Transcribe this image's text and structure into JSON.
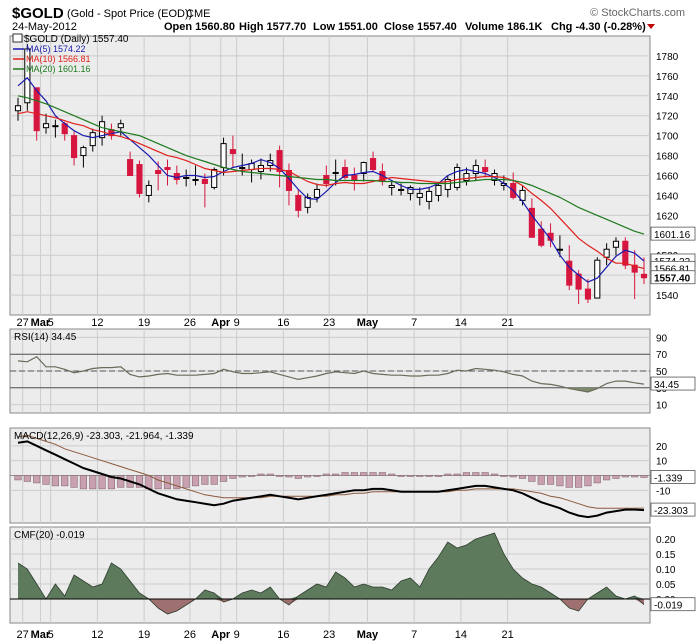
{
  "header": {
    "symbol": "$GOLD",
    "name": "(Gold - Spot Price (EOD))",
    "exchange": "CME",
    "watermark": "© StockCharts.com",
    "date": "24-May-2012",
    "open_label": "Open",
    "open": "1560.80",
    "high_label": "High",
    "high": "1577.70",
    "low_label": "Low",
    "low": "1551.00",
    "close_label": "Close",
    "close": "1557.40",
    "volume_label": "Volume",
    "volume": "186.1K",
    "chg_label": "Chg",
    "chg": "-4.30 (-0.28%)"
  },
  "legend": {
    "price": "$GOLD (Daily) 1557.40",
    "ma5": "MA(5) 1574.22",
    "ma10": "MA(10) 1566.81",
    "ma20": "MA(20) 1601.16"
  },
  "colors": {
    "up": "#ffffff",
    "down": "#d6163f",
    "ma5": "#1a1ab0",
    "ma10": "#e0201c",
    "ma20": "#1e7a1e",
    "grid": "#cccccc",
    "panel_bg": "#ececec",
    "rsi_line": "#6b6b5a",
    "macd_line": "#000000",
    "signal_line": "#8b5a3c",
    "hist": "#c9a0b0",
    "cmf_fill": "#5d7a5d",
    "cmf_neg_fill": "#9e7070"
  },
  "x_labels": [
    "27",
    "Mar",
    "5",
    "12",
    "19",
    "26",
    "Apr",
    "9",
    "16",
    "23",
    "May",
    "7",
    "14",
    "21"
  ],
  "chart_data": [
    {
      "type": "candlestick",
      "title": "$GOLD (Daily) 1557.40",
      "ylim": [
        1520,
        1800
      ],
      "y_ticks": [
        1540,
        1560,
        1580,
        1600,
        1620,
        1640,
        1660,
        1680,
        1700,
        1720,
        1740,
        1760,
        1780
      ],
      "current_labels": [
        "1601.16",
        "1574.22",
        "1566.81",
        "1557.40"
      ],
      "ohlc": [
        [
          1725,
          1738,
          1715,
          1730
        ],
        [
          1733,
          1792,
          1725,
          1787
        ],
        [
          1748,
          1748,
          1695,
          1705
        ],
        [
          1708,
          1722,
          1702,
          1712
        ],
        [
          1710,
          1716,
          1698,
          1710
        ],
        [
          1712,
          1714,
          1695,
          1702
        ],
        [
          1700,
          1704,
          1670,
          1678
        ],
        [
          1680,
          1690,
          1668,
          1688
        ],
        [
          1690,
          1707,
          1684,
          1703
        ],
        [
          1698,
          1720,
          1690,
          1714
        ],
        [
          1706,
          1712,
          1696,
          1700
        ],
        [
          1708,
          1716,
          1700,
          1712
        ],
        [
          1676,
          1684,
          1660,
          1660
        ],
        [
          1671,
          1675,
          1638,
          1642
        ],
        [
          1640,
          1655,
          1633,
          1650
        ],
        [
          1665,
          1674,
          1645,
          1662
        ],
        [
          1668,
          1676,
          1650,
          1666
        ],
        [
          1662,
          1670,
          1651,
          1656
        ],
        [
          1658,
          1666,
          1649,
          1658
        ],
        [
          1656,
          1670,
          1650,
          1656
        ],
        [
          1656,
          1662,
          1628,
          1652
        ],
        [
          1648,
          1668,
          1646,
          1666
        ],
        [
          1668,
          1698,
          1660,
          1692
        ],
        [
          1686,
          1700,
          1668,
          1682
        ],
        [
          1668,
          1682,
          1660,
          1668
        ],
        [
          1666,
          1676,
          1653,
          1672
        ],
        [
          1664,
          1677,
          1656,
          1670
        ],
        [
          1670,
          1682,
          1664,
          1675
        ],
        [
          1685,
          1690,
          1648,
          1664
        ],
        [
          1665,
          1672,
          1630,
          1645
        ],
        [
          1640,
          1646,
          1618,
          1625
        ],
        [
          1628,
          1642,
          1622,
          1638
        ],
        [
          1638,
          1652,
          1633,
          1646
        ],
        [
          1660,
          1670,
          1648,
          1652
        ],
        [
          1662,
          1676,
          1650,
          1663
        ],
        [
          1668,
          1676,
          1656,
          1658
        ],
        [
          1660,
          1668,
          1645,
          1655
        ],
        [
          1662,
          1674,
          1654,
          1673
        ],
        [
          1677,
          1684,
          1664,
          1666
        ],
        [
          1664,
          1672,
          1650,
          1654
        ],
        [
          1648,
          1655,
          1640,
          1650
        ],
        [
          1646,
          1652,
          1640,
          1646
        ],
        [
          1642,
          1650,
          1635,
          1648
        ],
        [
          1638,
          1648,
          1630,
          1642
        ],
        [
          1634,
          1648,
          1626,
          1644
        ],
        [
          1640,
          1652,
          1634,
          1650
        ],
        [
          1646,
          1660,
          1638,
          1656
        ],
        [
          1648,
          1672,
          1645,
          1668
        ],
        [
          1655,
          1668,
          1650,
          1662
        ],
        [
          1662,
          1676,
          1655,
          1670
        ],
        [
          1668,
          1676,
          1658,
          1664
        ],
        [
          1655,
          1666,
          1650,
          1662
        ],
        [
          1650,
          1660,
          1645,
          1652
        ],
        [
          1652,
          1663,
          1636,
          1638
        ],
        [
          1635,
          1650,
          1630,
          1645
        ],
        [
          1627,
          1637,
          1598,
          1598
        ],
        [
          1606,
          1614,
          1588,
          1590
        ],
        [
          1602,
          1612,
          1588,
          1595
        ],
        [
          1586,
          1600,
          1578,
          1586
        ],
        [
          1574,
          1590,
          1545,
          1550
        ],
        [
          1561,
          1565,
          1531,
          1546
        ],
        [
          1546,
          1556,
          1532,
          1536
        ],
        [
          1537,
          1578,
          1537,
          1575
        ],
        [
          1578,
          1592,
          1570,
          1586
        ],
        [
          1588,
          1598,
          1580,
          1594
        ],
        [
          1594,
          1598,
          1566,
          1570
        ],
        [
          1570,
          1585,
          1536,
          1563
        ],
        [
          1560.8,
          1577.7,
          1551,
          1557.4
        ]
      ],
      "series": [
        {
          "name": "MA(5) 1574.22",
          "values": [
            1750,
            1758,
            1745,
            1735,
            1720,
            1712,
            1705,
            1700,
            1698,
            1700,
            1702,
            1704,
            1696,
            1688,
            1680,
            1670,
            1660,
            1658,
            1660,
            1660,
            1658,
            1659,
            1664,
            1668,
            1670,
            1672,
            1676,
            1673,
            1667,
            1657,
            1646,
            1637,
            1636,
            1644,
            1653,
            1660,
            1661,
            1663,
            1664,
            1660,
            1655,
            1650,
            1646,
            1646,
            1648,
            1652,
            1660,
            1664,
            1666,
            1664,
            1662,
            1658,
            1652,
            1645,
            1634,
            1620,
            1608,
            1596,
            1580,
            1568,
            1560,
            1553,
            1557,
            1568,
            1579,
            1585,
            1582,
            1574.22
          ]
        },
        {
          "name": "MA(10) 1566.81",
          "values": [
            1722,
            1724,
            1722,
            1720,
            1718,
            1715,
            1712,
            1710,
            1706,
            1704,
            1701,
            1699,
            1696,
            1692,
            1688,
            1684,
            1680,
            1678,
            1675,
            1671,
            1667,
            1665,
            1663,
            1664,
            1665,
            1666,
            1667,
            1667,
            1666,
            1664,
            1659,
            1654,
            1651,
            1650,
            1652,
            1653,
            1652,
            1652,
            1654,
            1656,
            1658,
            1657,
            1656,
            1655,
            1654,
            1653,
            1654,
            1656,
            1657,
            1658,
            1659,
            1659,
            1658,
            1655,
            1650,
            1642,
            1635,
            1627,
            1617,
            1607,
            1597,
            1590,
            1584,
            1577,
            1572,
            1572,
            1569,
            1566.81
          ]
        },
        {
          "name": "MA(20) 1601.16",
          "values": [
            1740,
            1738,
            1735,
            1732,
            1728,
            1724,
            1720,
            1716,
            1712,
            1708,
            1706,
            1704,
            1702,
            1700,
            1696,
            1692,
            1688,
            1684,
            1680,
            1677,
            1674,
            1671,
            1668,
            1666,
            1664,
            1663,
            1662,
            1661,
            1660,
            1659,
            1658,
            1657,
            1656,
            1656,
            1655,
            1655,
            1655,
            1655,
            1655,
            1654,
            1654,
            1653,
            1653,
            1652,
            1652,
            1652,
            1652,
            1653,
            1654,
            1655,
            1656,
            1656,
            1656,
            1655,
            1653,
            1650,
            1646,
            1642,
            1638,
            1633,
            1628,
            1624,
            1620,
            1616,
            1612,
            1608,
            1604,
            1601.16
          ]
        }
      ]
    },
    {
      "type": "line",
      "title": "RSI(14) 34.45",
      "ylim": [
        0,
        100
      ],
      "y_ticks": [
        10,
        30,
        50,
        70,
        90
      ],
      "reference_lines": [
        30,
        50,
        70
      ],
      "current_label": "34.45",
      "series": [
        {
          "name": "RSI(14) 34.45",
          "values": [
            62,
            61,
            67,
            55,
            55,
            52,
            48,
            50,
            53,
            54,
            54,
            55,
            46,
            43,
            44,
            46,
            47,
            45,
            45,
            45,
            46,
            47,
            52,
            49,
            47,
            47,
            48,
            49,
            46,
            43,
            40,
            42,
            44,
            47,
            49,
            48,
            47,
            50,
            47,
            46,
            45,
            45,
            44,
            44,
            45,
            45,
            47,
            51,
            50,
            53,
            52,
            51,
            49,
            46,
            44,
            38,
            35,
            34,
            32,
            29,
            27,
            25,
            29,
            35,
            38,
            38,
            36,
            34.45
          ]
        }
      ]
    },
    {
      "type": "line",
      "title": "MACD(12,26,9) -23.303, -21.964, -1.339",
      "ylim": [
        -32,
        32
      ],
      "y_ticks": [
        -10,
        10,
        20
      ],
      "current_labels": [
        "-1.339",
        "-23.303"
      ],
      "series": [
        {
          "name": "MACD(12,26,9) -23.303",
          "values": [
            22,
            23,
            20,
            17,
            14,
            11,
            8,
            5,
            3,
            1,
            -1,
            -2,
            -4,
            -6,
            -9,
            -12,
            -14,
            -16,
            -17,
            -18,
            -19,
            -20,
            -19,
            -17,
            -16,
            -15,
            -14,
            -13,
            -14,
            -15,
            -16,
            -15,
            -14,
            -13,
            -12,
            -11,
            -10,
            -10,
            -9,
            -9,
            -10,
            -11,
            -11,
            -11,
            -11,
            -11,
            -10,
            -9,
            -8,
            -7,
            -7,
            -8,
            -9,
            -10,
            -12,
            -15,
            -18,
            -20,
            -22,
            -25,
            -27,
            -28,
            -27,
            -25,
            -24,
            -23,
            -23,
            -23.303
          ]
        },
        {
          "name": "-21.964",
          "values": [
            26,
            27,
            25,
            23,
            21,
            18,
            16,
            14,
            12,
            10,
            8,
            6,
            4,
            2,
            0,
            -3,
            -5,
            -7,
            -9,
            -11,
            -13,
            -14,
            -15,
            -15,
            -15,
            -15,
            -15,
            -14,
            -14,
            -14,
            -14,
            -14,
            -14,
            -14,
            -13,
            -13,
            -12,
            -12,
            -11,
            -11,
            -11,
            -11,
            -11,
            -11,
            -11,
            -11,
            -11,
            -10,
            -10,
            -9,
            -9,
            -9,
            -9,
            -9,
            -10,
            -11,
            -12,
            -14,
            -15,
            -17,
            -19,
            -21,
            -22,
            -22,
            -22,
            -22,
            -22,
            -21.964
          ]
        },
        {
          "name": "-1.339",
          "values": [
            -3,
            -4,
            -5,
            -6,
            -7,
            -7,
            -8,
            -9,
            -9,
            -9,
            -9,
            -8,
            -8,
            -8,
            -9,
            -9,
            -9,
            -9,
            -8,
            -7,
            -6,
            -6,
            -4,
            -2,
            -1,
            0,
            1,
            1,
            0,
            -1,
            -2,
            -1,
            0,
            1,
            1,
            2,
            2,
            2,
            2,
            2,
            1,
            0,
            0,
            0,
            0,
            0,
            1,
            1,
            2,
            2,
            2,
            1,
            0,
            -1,
            -2,
            -4,
            -6,
            -6,
            -7,
            -8,
            -8,
            -7,
            -5,
            -3,
            -2,
            -1,
            -1,
            -1.339
          ]
        }
      ]
    },
    {
      "type": "area",
      "title": "CMF(20) -0.019",
      "ylim": [
        -0.08,
        0.24
      ],
      "y_ticks": [
        0.0,
        0.05,
        0.1,
        0.15,
        0.2
      ],
      "current_label": "-0.019",
      "series": [
        {
          "name": "CMF(20) -0.019",
          "values": [
            0.12,
            0.1,
            0.05,
            0.0,
            0.05,
            0.01,
            0.08,
            0.06,
            0.04,
            0.05,
            0.12,
            0.1,
            0.06,
            0.02,
            0.0,
            -0.03,
            -0.05,
            -0.04,
            -0.02,
            0.0,
            0.03,
            0.02,
            -0.01,
            0.0,
            0.02,
            0.03,
            0.02,
            0.04,
            0.0,
            -0.02,
            0.01,
            0.03,
            0.05,
            0.04,
            0.09,
            0.07,
            0.04,
            0.05,
            0.04,
            0.04,
            0.03,
            0.06,
            0.07,
            0.04,
            0.1,
            0.14,
            0.19,
            0.17,
            0.18,
            0.2,
            0.21,
            0.22,
            0.15,
            0.1,
            0.07,
            0.05,
            0.04,
            0.02,
            0.0,
            -0.03,
            -0.04,
            0.0,
            0.02,
            0.04,
            0.01,
            0.0,
            0.01,
            -0.019
          ]
        }
      ]
    }
  ]
}
